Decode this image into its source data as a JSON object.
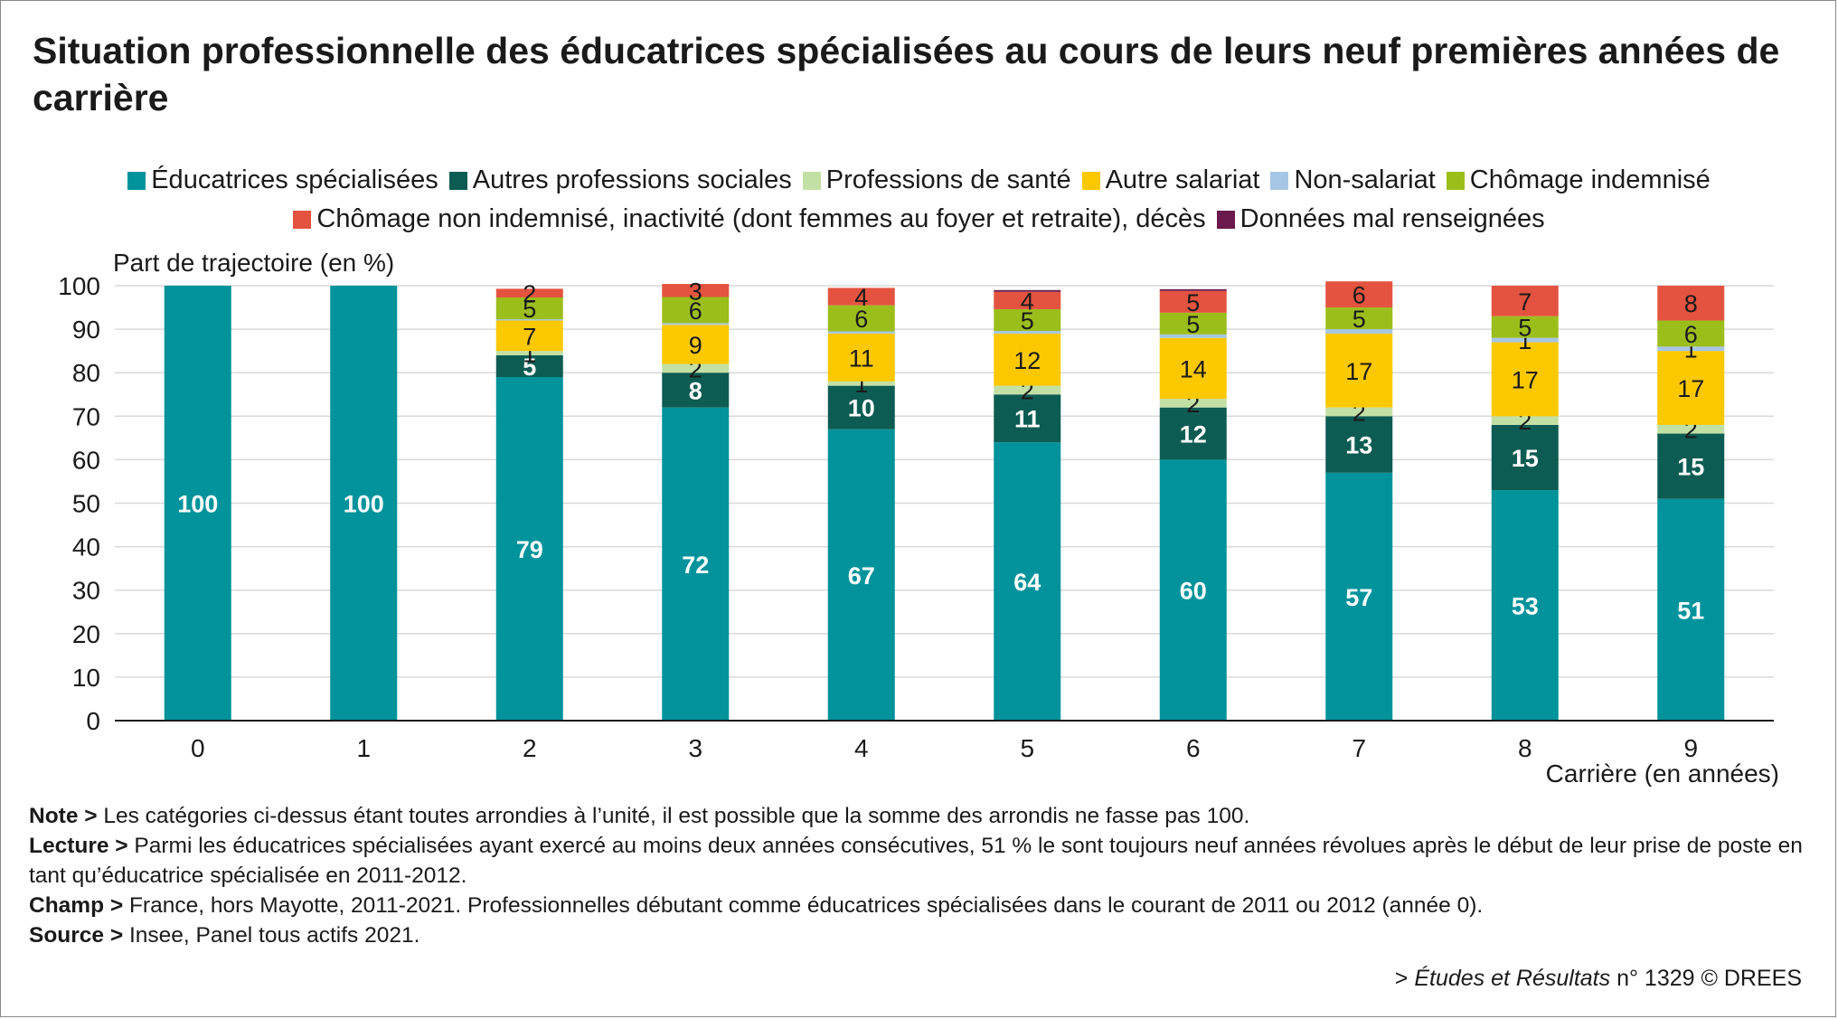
{
  "title": "Situation professionnelle des éducatrices spécialisées au cours de leurs neuf premières années de carrière",
  "chart_data": {
    "type": "bar",
    "stacked": true,
    "ylabel": "Part de trajectoire (en %)",
    "xlabel": "Carrière (en années)",
    "ylim": [
      0,
      100
    ],
    "yticks": [
      0,
      10,
      20,
      30,
      40,
      50,
      60,
      70,
      80,
      90,
      100
    ],
    "grid": true,
    "legend_position": "top",
    "categories": [
      "0",
      "1",
      "2",
      "3",
      "4",
      "5",
      "6",
      "7",
      "8",
      "9"
    ],
    "series": [
      {
        "name": "Éducatrices spécialisées",
        "color": "#00939b",
        "values": [
          100,
          100,
          79,
          72,
          67,
          64,
          60,
          57,
          53,
          51
        ],
        "labels": [
          "100",
          "100",
          "79",
          "72",
          "67",
          "64",
          "60",
          "57",
          "53",
          "51"
        ]
      },
      {
        "name": "Autres professions sociales",
        "color": "#0d5c53",
        "values": [
          0,
          0,
          5,
          8,
          10,
          11,
          12,
          13,
          15,
          15
        ],
        "labels": [
          "",
          "",
          "5",
          "8",
          "10",
          "11",
          "12",
          "13",
          "15",
          "15"
        ]
      },
      {
        "name": "Professions de santé",
        "color": "#c3e0a4",
        "values": [
          0,
          0,
          1,
          2,
          1,
          2,
          2,
          2,
          2,
          2
        ],
        "labels": [
          "",
          "",
          "1",
          "2",
          "1",
          "2",
          "2",
          "2",
          "2",
          "2"
        ]
      },
      {
        "name": "Autre salariat",
        "color": "#fcc800",
        "values": [
          0,
          0,
          7,
          9,
          11,
          12,
          14,
          17,
          17,
          17
        ],
        "labels": [
          "",
          "",
          "7",
          "9",
          "11",
          "12",
          "14",
          "17",
          "17",
          "17"
        ]
      },
      {
        "name": "Non-salariat",
        "color": "#a6c6e6",
        "values": [
          0,
          0,
          0.3,
          0.4,
          0.5,
          0.6,
          0.8,
          1,
          1,
          1
        ],
        "labels": [
          "",
          "",
          "",
          "",
          "",
          "",
          "",
          "",
          "1",
          "1"
        ]
      },
      {
        "name": "Chômage indemnisé",
        "color": "#9cbe1b",
        "values": [
          0,
          0,
          5,
          6,
          6,
          5,
          5,
          5,
          5,
          6
        ],
        "labels": [
          "",
          "",
          "5",
          "6",
          "6",
          "5",
          "5",
          "5",
          "5",
          "6"
        ]
      },
      {
        "name": "Chômage non indemnisé, inactivité (dont femmes au foyer et retraite), décès",
        "color": "#e4533f",
        "values": [
          0,
          0,
          2,
          3,
          4,
          4,
          5,
          6,
          7,
          8
        ],
        "labels": [
          "",
          "",
          "2",
          "3",
          "4",
          "4",
          "5",
          "6",
          "7",
          "8"
        ]
      },
      {
        "name": "Données mal renseignées",
        "color": "#6b1a4d",
        "values": [
          0,
          0,
          0,
          0,
          0,
          0.4,
          0.4,
          0,
          0,
          0
        ],
        "labels": [
          "",
          "",
          "",
          "",
          "",
          "",
          "",
          "",
          "",
          ""
        ]
      }
    ]
  },
  "notes": {
    "note_label": "Note >",
    "note_text": " Les catégories ci-dessus étant toutes arrondies à l’unité, il est possible que la somme des arrondis ne fasse pas 100.",
    "lecture_label": "Lecture >",
    "lecture_text": " Parmi les éducatrices spécialisées ayant exercé au moins deux années consécutives, 51 % le sont toujours neuf années révolues après le début de leur prise de poste en tant qu’éducatrice spécialisée en 2011-2012.",
    "champ_label": "Champ >",
    "champ_text": " France, hors Mayotte, 2011-2021. Professionnelles débutant comme éducatrices spécialisées dans le courant de 2011 ou 2012 (année 0).",
    "source_label": "Source >",
    "source_text": " Insee, Panel tous actifs 2021."
  },
  "publication": {
    "prefix": "> ",
    "title": "Études et Résultats",
    "suffix": " n° 1329 © DREES"
  }
}
